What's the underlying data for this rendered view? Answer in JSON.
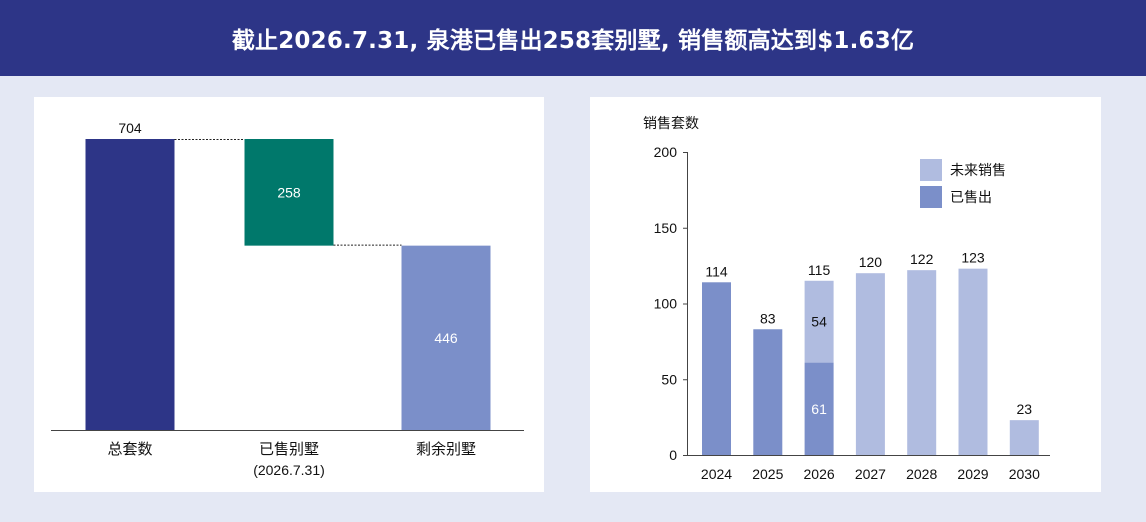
{
  "header": {
    "title": "截止2026.7.31, 泉港已售出258套别墅, 销售额高达到$1.63亿"
  },
  "colors": {
    "header_bg": "#2d3587",
    "page_bg": "#e4e8f4",
    "total": "#2d3587",
    "sold_green": "#00786b",
    "remaining": "#7b8fc9",
    "sold_bar": "#7b8fc9",
    "future_bar": "#b0bce0"
  },
  "chart_data": [
    {
      "type": "bar",
      "subtype": "waterfall",
      "categories": [
        "总套数",
        "已售别墅",
        "剩余别墅"
      ],
      "category_sublabels": [
        "",
        "(2026.7.31)",
        ""
      ],
      "values": [
        704,
        258,
        446
      ],
      "data_labels": [
        "704",
        "258",
        "446"
      ],
      "ylim": [
        0,
        704
      ]
    },
    {
      "type": "bar",
      "subtype": "stacked",
      "ylabel": "销售套数",
      "categories": [
        "2024",
        "2025",
        "2026",
        "2027",
        "2028",
        "2029",
        "2030"
      ],
      "series": [
        {
          "name": "已售出",
          "values": [
            114,
            83,
            61,
            0,
            0,
            0,
            0
          ]
        },
        {
          "name": "未来销售",
          "values": [
            0,
            0,
            54,
            120,
            122,
            123,
            23
          ]
        }
      ],
      "totals": [
        114,
        83,
        115,
        120,
        122,
        123,
        23
      ],
      "total_labels": [
        "114",
        "83",
        "115",
        "120",
        "122",
        "123",
        "23"
      ],
      "segment_labels": [
        {
          "category": "2026",
          "series": "未来销售",
          "text": "54"
        },
        {
          "category": "2026",
          "series": "已售出",
          "text": "61"
        }
      ],
      "ylim": [
        0,
        200
      ],
      "yticks": [
        "0",
        "50",
        "100",
        "150",
        "200"
      ],
      "legend": [
        "未来销售",
        "已售出"
      ],
      "legend_position": "top-right",
      "grid": false
    }
  ]
}
